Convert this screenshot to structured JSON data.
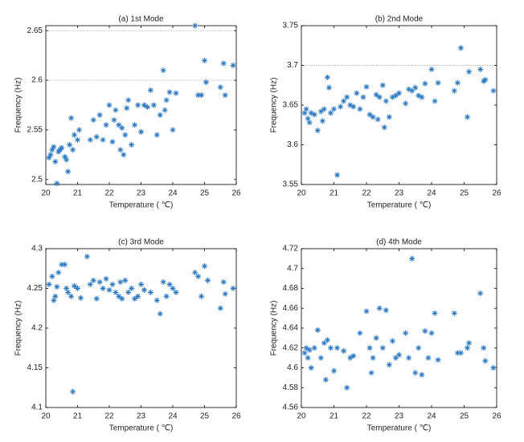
{
  "chart_data": [
    {
      "type": "scatter",
      "title": "(a) 1st Mode",
      "x_label": "Temperature ( ℃)",
      "y_label": "Frequency (Hz)",
      "color": "#2a78c2",
      "xlim": [
        20,
        26
      ],
      "xticks": [
        20,
        21,
        22,
        23,
        24,
        25,
        26
      ],
      "ylim": [
        2.495,
        2.655
      ],
      "yticks": [
        2.5,
        2.55,
        2.6,
        2.65
      ],
      "reference_lines": [
        2.6,
        2.65
      ],
      "x": [
        20.1,
        20.15,
        20.2,
        20.25,
        20.3,
        20.35,
        20.4,
        20.45,
        20.5,
        20.6,
        20.65,
        20.7,
        20.75,
        20.8,
        20.85,
        20.9,
        21,
        21.05,
        21.4,
        21.5,
        21.6,
        21.7,
        21.8,
        21.9,
        22,
        22.1,
        22.15,
        22.2,
        22.3,
        22.35,
        22.4,
        22.45,
        22.5,
        22.55,
        22.6,
        22.7,
        22.8,
        22.9,
        23,
        23.1,
        23.2,
        23.3,
        23.4,
        23.5,
        23.6,
        23.7,
        23.75,
        23.8,
        23.9,
        24,
        24.1,
        24.7,
        24.8,
        24.9,
        25,
        25.05,
        25.5,
        25.6,
        25.65,
        25.9
      ],
      "values": [
        2.522,
        2.525,
        2.53,
        2.533,
        2.518,
        2.496,
        2.528,
        2.53,
        2.532,
        2.523,
        2.52,
        2.508,
        2.535,
        2.562,
        2.53,
        2.545,
        2.54,
        2.55,
        2.54,
        2.56,
        2.543,
        2.565,
        2.54,
        2.555,
        2.575,
        2.538,
        2.56,
        2.57,
        2.555,
        2.53,
        2.552,
        2.525,
        2.545,
        2.572,
        2.58,
        2.535,
        2.555,
        2.575,
        2.548,
        2.575,
        2.573,
        2.59,
        2.575,
        2.545,
        2.565,
        2.61,
        2.57,
        2.58,
        2.588,
        2.55,
        2.587,
        2.655,
        2.585,
        2.585,
        2.62,
        2.598,
        2.593,
        2.617,
        2.585,
        2.615
      ]
    },
    {
      "type": "scatter",
      "title": "(b) 2nd Mode",
      "x_label": "Temperature ( ℃)",
      "y_label": "Frequency (Hz)",
      "color": "#2a78c2",
      "xlim": [
        20,
        26
      ],
      "xticks": [
        20,
        21,
        22,
        23,
        24,
        25,
        26
      ],
      "ylim": [
        3.55,
        3.75
      ],
      "yticks": [
        3.55,
        3.6,
        3.65,
        3.7,
        3.75
      ],
      "reference_lines": [
        3.7
      ],
      "x": [
        20.1,
        20.15,
        20.2,
        20.25,
        20.3,
        20.4,
        20.5,
        20.6,
        20.65,
        20.7,
        20.8,
        20.85,
        20.9,
        21,
        21.1,
        21.2,
        21.3,
        21.4,
        21.5,
        21.6,
        21.7,
        21.8,
        21.9,
        22,
        22.1,
        22.2,
        22.3,
        22.35,
        22.4,
        22.5,
        22.55,
        22.6,
        22.7,
        22.8,
        22.9,
        23,
        23.2,
        23.3,
        23.4,
        23.5,
        23.6,
        23.7,
        23.8,
        24,
        24.1,
        24.2,
        24.7,
        24.8,
        24.9,
        25.1,
        25.15,
        25.5,
        25.6,
        25.65,
        25.9
      ],
      "values": [
        3.64,
        3.645,
        3.633,
        3.628,
        3.64,
        3.638,
        3.618,
        3.642,
        3.63,
        3.645,
        3.685,
        3.672,
        3.64,
        3.645,
        3.562,
        3.648,
        3.655,
        3.66,
        3.65,
        3.648,
        3.665,
        3.645,
        3.66,
        3.673,
        3.638,
        3.635,
        3.663,
        3.632,
        3.66,
        3.675,
        3.622,
        3.655,
        3.635,
        3.66,
        3.662,
        3.665,
        3.652,
        3.67,
        3.668,
        3.672,
        3.662,
        3.66,
        3.677,
        3.695,
        3.655,
        3.678,
        3.668,
        3.678,
        3.722,
        3.635,
        3.692,
        3.695,
        3.68,
        3.682,
        3.668
      ]
    },
    {
      "type": "scatter",
      "title": "(c) 3rd Mode",
      "x_label": "Temperature ( ℃)",
      "y_label": "Frequency (Hz)",
      "color": "#2a78c2",
      "xlim": [
        20,
        26
      ],
      "xticks": [
        20,
        21,
        22,
        23,
        24,
        25,
        26
      ],
      "ylim": [
        4.1,
        4.3
      ],
      "yticks": [
        4.1,
        4.15,
        4.2,
        4.25,
        4.3
      ],
      "x": [
        20.1,
        20.2,
        20.25,
        20.3,
        20.35,
        20.4,
        20.5,
        20.6,
        20.65,
        20.7,
        20.8,
        20.85,
        20.9,
        21,
        21.1,
        21.3,
        21.4,
        21.5,
        21.6,
        21.7,
        21.8,
        21.9,
        22,
        22.1,
        22.2,
        22.3,
        22.35,
        22.4,
        22.5,
        22.6,
        22.7,
        22.8,
        22.9,
        23,
        23.1,
        23.3,
        23.5,
        23.6,
        23.7,
        23.8,
        23.9,
        24,
        24.1,
        24.7,
        24.8,
        24.9,
        25,
        25.1,
        25.5,
        25.6,
        25.65,
        25.9
      ],
      "values": [
        4.255,
        4.265,
        4.235,
        4.24,
        4.252,
        4.27,
        4.28,
        4.28,
        4.25,
        4.245,
        4.24,
        4.12,
        4.253,
        4.25,
        4.238,
        4.29,
        4.255,
        4.26,
        4.237,
        4.258,
        4.25,
        4.262,
        4.248,
        4.255,
        4.245,
        4.24,
        4.258,
        4.237,
        4.26,
        4.245,
        4.25,
        4.237,
        4.24,
        4.255,
        4.248,
        4.245,
        4.235,
        4.218,
        4.258,
        4.24,
        4.255,
        4.25,
        4.245,
        4.27,
        4.265,
        4.24,
        4.278,
        4.26,
        4.225,
        4.258,
        4.243,
        4.25
      ]
    },
    {
      "type": "scatter",
      "title": "(d) 4th Mode",
      "x_label": "Temperature ( ℃)",
      "y_label": "Frequency (Hz)",
      "color": "#2a78c2",
      "xlim": [
        20,
        26
      ],
      "xticks": [
        20,
        21,
        22,
        23,
        24,
        25,
        26
      ],
      "ylim": [
        4.56,
        4.72
      ],
      "yticks": [
        4.56,
        4.58,
        4.6,
        4.62,
        4.64,
        4.66,
        4.68,
        4.7,
        4.72
      ],
      "x": [
        20.1,
        20.15,
        20.2,
        20.25,
        20.3,
        20.4,
        20.5,
        20.6,
        20.7,
        20.75,
        20.8,
        20.9,
        21,
        21.1,
        21.3,
        21.4,
        21.5,
        21.6,
        21.8,
        22,
        22.1,
        22.15,
        22.2,
        22.3,
        22.4,
        22.5,
        22.6,
        22.7,
        22.8,
        22.9,
        23,
        23.2,
        23.3,
        23.4,
        23.5,
        23.6,
        23.7,
        23.8,
        23.9,
        24,
        24.1,
        24.2,
        24.7,
        24.8,
        24.9,
        25.1,
        25.15,
        25.5,
        25.6,
        25.65,
        25.9
      ],
      "values": [
        4.615,
        4.62,
        4.61,
        4.618,
        4.6,
        4.62,
        4.638,
        4.61,
        4.625,
        4.588,
        4.628,
        4.62,
        4.597,
        4.62,
        4.617,
        4.58,
        4.61,
        4.612,
        4.635,
        4.657,
        4.62,
        4.595,
        4.61,
        4.63,
        4.66,
        4.62,
        4.658,
        4.603,
        4.627,
        4.61,
        4.613,
        4.635,
        4.61,
        4.71,
        4.595,
        4.62,
        4.593,
        4.637,
        4.61,
        4.635,
        4.655,
        4.608,
        4.655,
        4.615,
        4.615,
        4.62,
        4.625,
        4.675,
        4.62,
        4.607,
        4.6
      ]
    }
  ]
}
